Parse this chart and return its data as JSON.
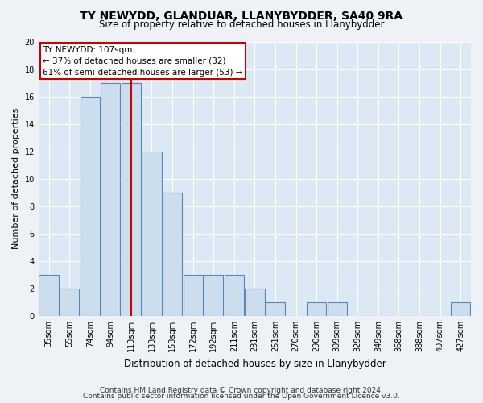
{
  "title": "TY NEWYDD, GLANDUAR, LLANYBYDDER, SA40 9RA",
  "subtitle": "Size of property relative to detached houses in Llanybydder",
  "xlabel": "Distribution of detached houses by size in Llanybydder",
  "ylabel": "Number of detached properties",
  "categories": [
    "35sqm",
    "55sqm",
    "74sqm",
    "94sqm",
    "113sqm",
    "133sqm",
    "153sqm",
    "172sqm",
    "192sqm",
    "211sqm",
    "231sqm",
    "251sqm",
    "270sqm",
    "290sqm",
    "309sqm",
    "329sqm",
    "349sqm",
    "368sqm",
    "388sqm",
    "407sqm",
    "427sqm"
  ],
  "values": [
    3,
    2,
    16,
    17,
    17,
    12,
    9,
    3,
    3,
    3,
    2,
    1,
    0,
    1,
    1,
    0,
    0,
    0,
    0,
    0,
    1
  ],
  "bar_color": "#ccdded",
  "bar_edge_color": "#5588bb",
  "vline_x_index": 4,
  "vline_color": "#cc0000",
  "annotation_title": "TY NEWYDD: 107sqm",
  "annotation_line1": "← 37% of detached houses are smaller (32)",
  "annotation_line2": "61% of semi-detached houses are larger (53) →",
  "annotation_box_facecolor": "#ffffff",
  "annotation_box_edgecolor": "#cc0000",
  "ylim": [
    0,
    20
  ],
  "yticks": [
    0,
    2,
    4,
    6,
    8,
    10,
    12,
    14,
    16,
    18,
    20
  ],
  "footer1": "Contains HM Land Registry data © Crown copyright and database right 2024.",
  "footer2": "Contains public sector information licensed under the Open Government Licence v3.0.",
  "fig_bg_color": "#eef2f7",
  "plot_bg_color": "#dce8f4",
  "grid_color": "#ffffff",
  "title_fontsize": 10,
  "subtitle_fontsize": 8.5,
  "ylabel_fontsize": 8,
  "xlabel_fontsize": 8.5,
  "tick_fontsize": 7,
  "footer_fontsize": 6.5,
  "annot_fontsize": 7.5
}
